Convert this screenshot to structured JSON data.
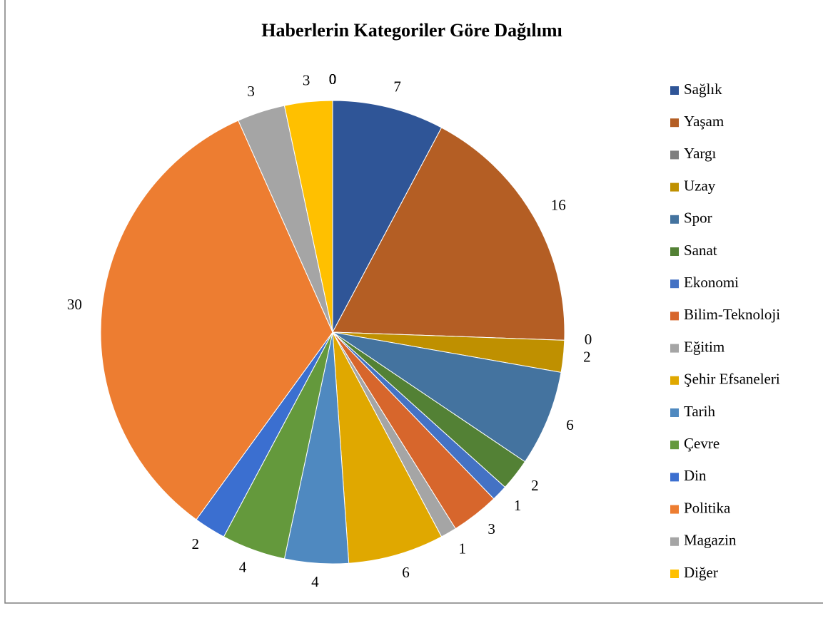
{
  "chart_data": {
    "type": "pie",
    "title": "Haberlerin Kategoriler Göre Dağılımı",
    "categories": [
      "Sağlık",
      "Yaşam",
      "Yargı",
      "Uzay",
      "Spor",
      "Sanat",
      "Ekonomi",
      "Bilim-Teknoloji",
      "Eğitim",
      "Şehir Efsaneleri",
      "Tarih",
      "Çevre",
      "Din",
      "Politika",
      "Magazin",
      "Diğer",
      null,
      null,
      null,
      null,
      null,
      null
    ],
    "values": [
      7,
      16,
      0,
      2,
      6,
      2,
      1,
      3,
      1,
      6,
      4,
      4,
      2,
      30,
      3,
      3,
      0,
      0,
      0,
      0,
      0,
      0
    ],
    "colors": [
      "#2f5597",
      "#b45e24",
      "#7f7f7f",
      "#bf9000",
      "#44739f",
      "#538135",
      "#4472c4",
      "#d7662c",
      "#a5a5a5",
      "#e0a800",
      "#4f89c0",
      "#64993c",
      "#3b6fd0",
      "#ed7d31",
      "#a5a5a5",
      "#ffc000",
      "#777777",
      "#777777",
      "#777777",
      "#777777",
      "#777777",
      "#777777"
    ],
    "legend": "right"
  }
}
